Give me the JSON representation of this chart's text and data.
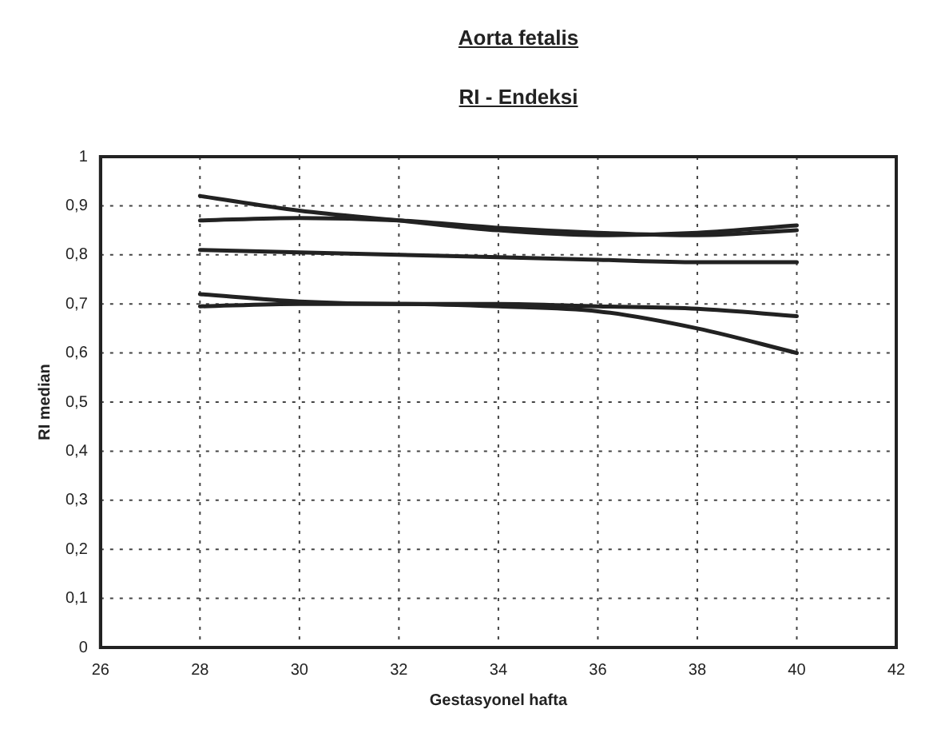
{
  "chart_data": {
    "type": "line",
    "title": "Aorta fetalis",
    "subtitle": "RI - Endeksi",
    "xlabel": "Gestasyonel hafta",
    "ylabel": "RI median",
    "x": [
      28,
      30,
      32,
      34,
      36,
      38,
      40
    ],
    "series": [
      {
        "color": "#222222",
        "values": [
          0.92,
          0.89,
          0.87,
          0.85,
          0.84,
          0.845,
          0.86
        ]
      },
      {
        "color": "#222222",
        "values": [
          0.87,
          0.875,
          0.87,
          0.855,
          0.845,
          0.84,
          0.85
        ]
      },
      {
        "color": "#222222",
        "values": [
          0.81,
          0.805,
          0.8,
          0.795,
          0.79,
          0.785,
          0.785
        ]
      },
      {
        "color": "#222222",
        "values": [
          0.72,
          0.705,
          0.7,
          0.7,
          0.695,
          0.69,
          0.675
        ]
      },
      {
        "color": "#222222",
        "values": [
          0.695,
          0.7,
          0.7,
          0.695,
          0.685,
          0.65,
          0.6
        ]
      }
    ],
    "xlim": [
      26,
      42
    ],
    "xticks": [
      26,
      28,
      30,
      32,
      34,
      36,
      38,
      40,
      42
    ],
    "ylim": [
      0,
      1
    ],
    "yticks": [
      0,
      {
        "value": 0.1,
        "label": "0,1"
      },
      {
        "value": 0.2,
        "label": "0,2"
      },
      {
        "value": 0.3,
        "label": "0,3"
      },
      {
        "value": 0.4,
        "label": "0,4"
      },
      {
        "value": 0.5,
        "label": "0,5"
      },
      {
        "value": 0.6,
        "label": "0,6"
      },
      {
        "value": 0.7,
        "label": "0,7"
      },
      {
        "value": 0.8,
        "label": "0,8"
      },
      {
        "value": 0.9,
        "label": "0,9"
      },
      1
    ],
    "grid": true,
    "legend": false,
    "marker": "none",
    "line_style": "solid"
  }
}
